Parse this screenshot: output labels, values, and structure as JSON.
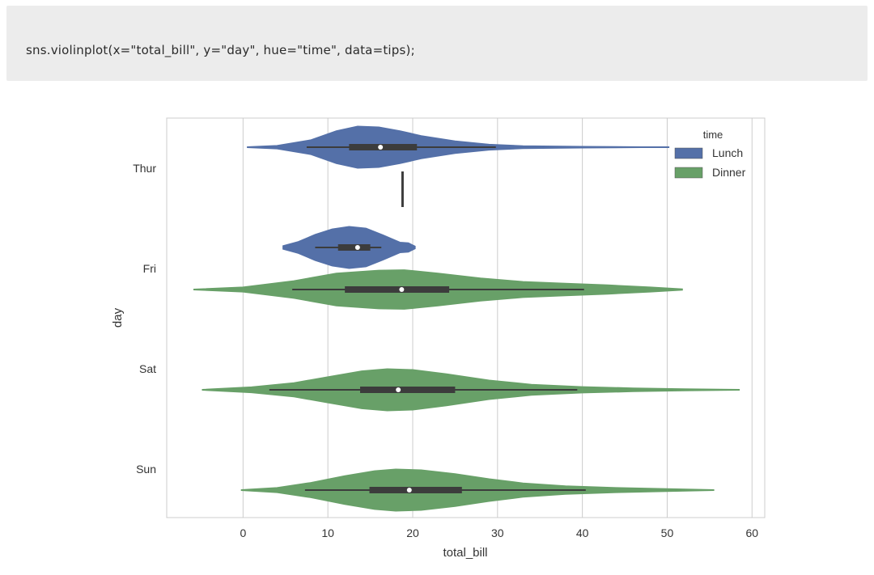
{
  "code_cell": {
    "text": "sns.violinplot(x=\"total_bill\", y=\"day\", hue=\"time\", data=tips);"
  },
  "chart_data": {
    "type": "violin",
    "orientation": "horizontal",
    "title": "",
    "xlabel": "total_bill",
    "ylabel": "day",
    "xlim": [
      -9,
      61.5
    ],
    "xticks": [
      0,
      10,
      20,
      30,
      40,
      50,
      60
    ],
    "categories": [
      "Thur",
      "Fri",
      "Sat",
      "Sun"
    ],
    "grid": "vertical",
    "legend": {
      "title": "time",
      "placement": "top-right",
      "entries": [
        "Lunch",
        "Dinner"
      ]
    },
    "colors": {
      "Lunch": "#5470a8",
      "Dinner": "#68a068",
      "box": "#3c3c3c",
      "median": "#ffffff"
    },
    "series": [
      {
        "name": "Lunch",
        "violins": [
          {
            "category": "Thur",
            "min": 0.5,
            "q1": 12.5,
            "median": 16.2,
            "q3": 20.5,
            "max": 50.2,
            "whisker_low": 7.5,
            "whisker_high": 29.8,
            "density": [
              [
                0.5,
                0.02
              ],
              [
                4,
                0.08
              ],
              [
                8,
                0.35
              ],
              [
                11,
                0.78
              ],
              [
                13.5,
                1.0
              ],
              [
                16,
                0.96
              ],
              [
                18.5,
                0.78
              ],
              [
                21,
                0.55
              ],
              [
                25,
                0.3
              ],
              [
                29,
                0.14
              ],
              [
                33,
                0.07
              ],
              [
                40,
                0.04
              ],
              [
                47,
                0.02
              ],
              [
                50.2,
                0.02
              ]
            ]
          },
          {
            "category": "Fri",
            "min": 4.7,
            "q1": 11.2,
            "median": 13.5,
            "q3": 15.0,
            "max": 20.3,
            "whisker_low": 8.5,
            "whisker_high": 16.3,
            "density": [
              [
                4.7,
                0.08
              ],
              [
                6.5,
                0.28
              ],
              [
                8.5,
                0.62
              ],
              [
                10.5,
                0.88
              ],
              [
                12.5,
                1.0
              ],
              [
                14.5,
                0.92
              ],
              [
                16.5,
                0.6
              ],
              [
                18.5,
                0.25
              ],
              [
                19.5,
                0.22
              ],
              [
                20.3,
                0.06
              ]
            ]
          }
        ]
      },
      {
        "name": "Dinner",
        "violins": [
          {
            "category": "Thur",
            "min": 18.8,
            "q1": 18.8,
            "median": 18.8,
            "q3": 18.8,
            "max": 18.8,
            "whisker_low": 18.8,
            "whisker_high": 18.8,
            "density": []
          },
          {
            "category": "Fri",
            "min": -5.8,
            "q1": 12.0,
            "median": 18.7,
            "q3": 24.3,
            "max": 51.8,
            "whisker_low": 5.8,
            "whisker_high": 40.2,
            "density": [
              [
                -5.8,
                0.02
              ],
              [
                0,
                0.12
              ],
              [
                6,
                0.42
              ],
              [
                11,
                0.78
              ],
              [
                16,
                0.92
              ],
              [
                19,
                0.94
              ],
              [
                23,
                0.78
              ],
              [
                28,
                0.55
              ],
              [
                33,
                0.38
              ],
              [
                38,
                0.3
              ],
              [
                43,
                0.22
              ],
              [
                48,
                0.12
              ],
              [
                51.8,
                0.03
              ]
            ]
          },
          {
            "category": "Sat",
            "min": -4.8,
            "q1": 13.8,
            "median": 18.3,
            "q3": 25.0,
            "max": 58.5,
            "whisker_low": 3.1,
            "whisker_high": 39.4,
            "density": [
              [
                -4.8,
                0.02
              ],
              [
                1,
                0.14
              ],
              [
                6,
                0.34
              ],
              [
                10,
                0.62
              ],
              [
                14,
                0.9
              ],
              [
                17,
                1.0
              ],
              [
                20,
                0.96
              ],
              [
                24,
                0.76
              ],
              [
                29,
                0.46
              ],
              [
                34,
                0.26
              ],
              [
                40,
                0.15
              ],
              [
                46,
                0.09
              ],
              [
                52,
                0.05
              ],
              [
                58.5,
                0.02
              ]
            ]
          },
          {
            "category": "Sun",
            "min": -0.2,
            "q1": 14.9,
            "median": 19.6,
            "q3": 25.8,
            "max": 55.5,
            "whisker_low": 7.3,
            "whisker_high": 40.4,
            "density": [
              [
                -0.2,
                0.02
              ],
              [
                4,
                0.12
              ],
              [
                8,
                0.36
              ],
              [
                12,
                0.68
              ],
              [
                15.5,
                0.92
              ],
              [
                18,
                1.0
              ],
              [
                21,
                0.96
              ],
              [
                25,
                0.78
              ],
              [
                29,
                0.54
              ],
              [
                33,
                0.34
              ],
              [
                38,
                0.2
              ],
              [
                44,
                0.12
              ],
              [
                50,
                0.07
              ],
              [
                55.5,
                0.02
              ]
            ]
          }
        ]
      }
    ]
  }
}
